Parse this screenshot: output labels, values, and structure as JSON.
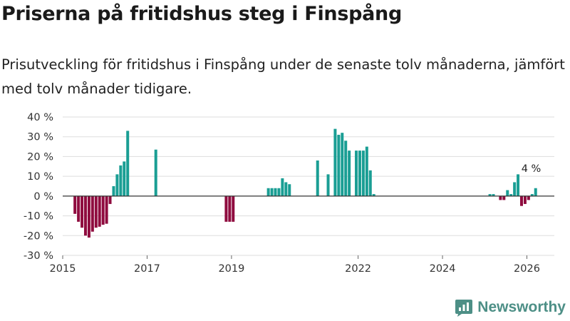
{
  "header": {
    "title": "Priserna på fritidshus steg i Finspång",
    "subtitle": "Prisutveckling för fritidshus i Finspång under de senaste tolv månaderna, jämfört med tolv månader tidigare."
  },
  "brand": {
    "name": "Newsworthy",
    "icon": "newsworthy-logo-icon",
    "color": "#4d8f86"
  },
  "chart_data": {
    "type": "bar",
    "title": "Priserna på fritidshus steg i Finspång",
    "xlabel": "",
    "ylabel": "",
    "x_unit": "month",
    "ylim": [
      -30,
      40
    ],
    "y_ticks": [
      40,
      30,
      20,
      10,
      0,
      -10,
      -20,
      -30
    ],
    "y_tick_labels": [
      "40 %",
      "30 %",
      "20 %",
      "10 %",
      "0 %",
      "-10 %",
      "-20 %",
      "-30 %"
    ],
    "x_ticks": [
      2015,
      2017,
      2019,
      2022,
      2024,
      2026
    ],
    "x_tick_labels": [
      "2015",
      "2017",
      "2019",
      "2022",
      "2024",
      "2026"
    ],
    "grid": true,
    "colors": {
      "positive": "#1a9e94",
      "negative": "#8f0c3f",
      "grid": "#dddddd",
      "zero_line": "#333333"
    },
    "annotation": {
      "text": "4 %",
      "x": "2026-01",
      "y": 4
    },
    "series": [
      {
        "name": "Prisutveckling",
        "points": [
          {
            "x": "2015-04",
            "y": -9
          },
          {
            "x": "2015-05",
            "y": -13
          },
          {
            "x": "2015-06",
            "y": -16
          },
          {
            "x": "2015-07",
            "y": -20
          },
          {
            "x": "2015-08",
            "y": -21
          },
          {
            "x": "2015-09",
            "y": -18
          },
          {
            "x": "2015-10",
            "y": -16
          },
          {
            "x": "2015-11",
            "y": -15.5
          },
          {
            "x": "2015-12",
            "y": -14.5
          },
          {
            "x": "2016-01",
            "y": -14
          },
          {
            "x": "2016-02",
            "y": -4
          },
          {
            "x": "2016-03",
            "y": 5
          },
          {
            "x": "2016-04",
            "y": 11
          },
          {
            "x": "2016-05",
            "y": 15.5
          },
          {
            "x": "2016-06",
            "y": 17.5
          },
          {
            "x": "2016-07",
            "y": 33
          },
          {
            "x": "2017-03",
            "y": 23.5
          },
          {
            "x": "2018-11",
            "y": -13
          },
          {
            "x": "2018-12",
            "y": -13
          },
          {
            "x": "2019-01",
            "y": -13
          },
          {
            "x": "2019-11",
            "y": 4
          },
          {
            "x": "2019-12",
            "y": 4
          },
          {
            "x": "2020-01",
            "y": 4
          },
          {
            "x": "2020-02",
            "y": 4
          },
          {
            "x": "2020-03",
            "y": 9
          },
          {
            "x": "2020-04",
            "y": 7
          },
          {
            "x": "2020-05",
            "y": 6
          },
          {
            "x": "2021-01",
            "y": 18
          },
          {
            "x": "2021-04",
            "y": 11
          },
          {
            "x": "2021-06",
            "y": 34
          },
          {
            "x": "2021-07",
            "y": 31
          },
          {
            "x": "2021-08",
            "y": 32
          },
          {
            "x": "2021-09",
            "y": 28
          },
          {
            "x": "2021-10",
            "y": 23
          },
          {
            "x": "2021-12",
            "y": 23
          },
          {
            "x": "2022-01",
            "y": 23
          },
          {
            "x": "2022-02",
            "y": 23
          },
          {
            "x": "2022-03",
            "y": 25
          },
          {
            "x": "2022-04",
            "y": 13
          },
          {
            "x": "2022-05",
            "y": 1
          },
          {
            "x": "2025-02",
            "y": 1
          },
          {
            "x": "2025-03",
            "y": 1
          },
          {
            "x": "2025-05",
            "y": -2
          },
          {
            "x": "2025-06",
            "y": -2
          },
          {
            "x": "2025-07",
            "y": 3
          },
          {
            "x": "2025-08",
            "y": 1
          },
          {
            "x": "2025-09",
            "y": 7
          },
          {
            "x": "2025-10",
            "y": 11
          },
          {
            "x": "2025-11",
            "y": -5
          },
          {
            "x": "2025-12",
            "y": -4
          },
          {
            "x": "2026-01",
            "y": -2
          },
          {
            "x": "2026-02",
            "y": 1
          },
          {
            "x": "2026-03",
            "y": 4
          }
        ]
      }
    ]
  }
}
